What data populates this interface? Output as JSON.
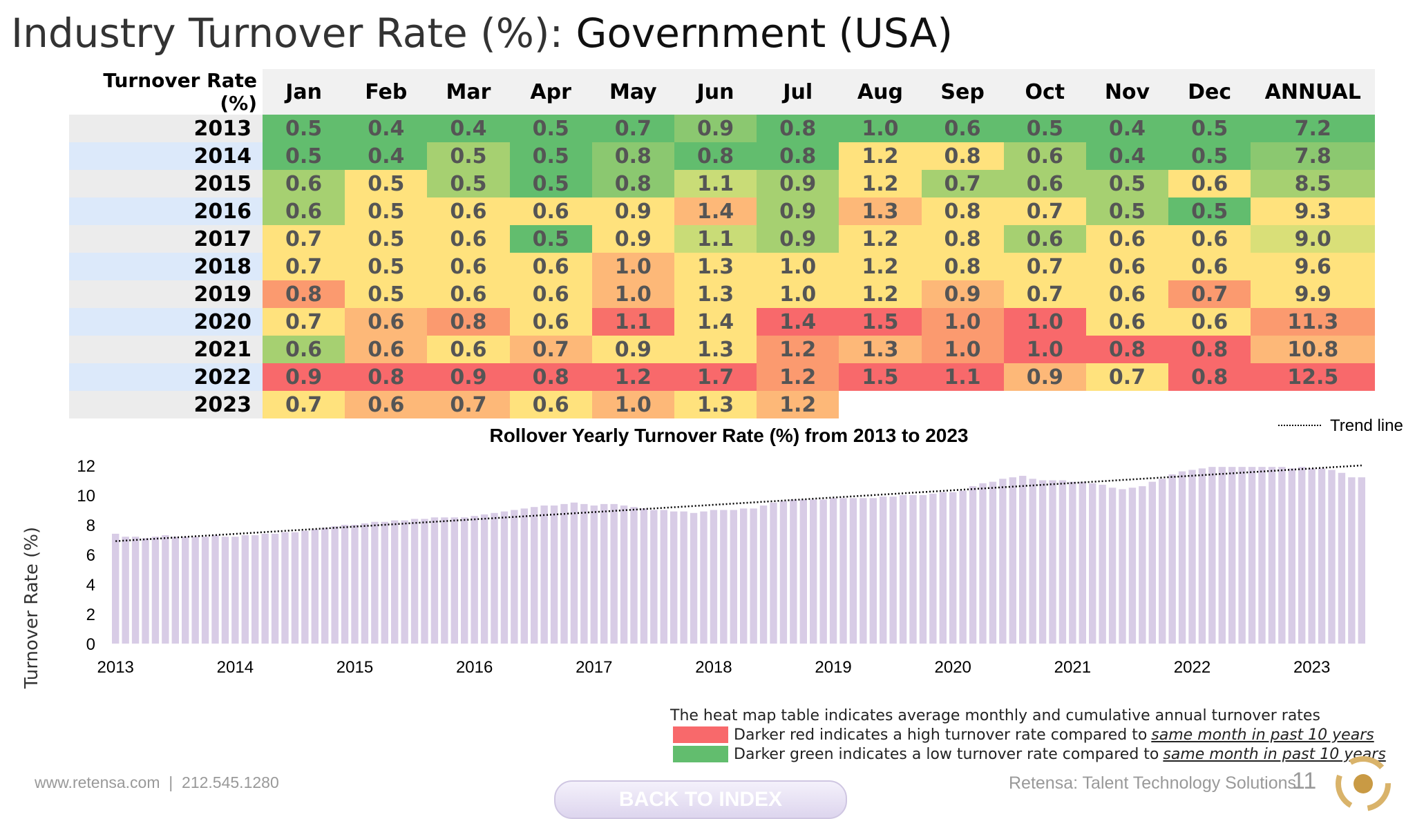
{
  "title": {
    "light": "Industry Turnover Rate (%): ",
    "bold": "Government (USA)"
  },
  "table": {
    "corner": "Turnover Rate (%)",
    "headers": [
      "Jan",
      "Feb",
      "Mar",
      "Apr",
      "May",
      "Jun",
      "Jul",
      "Aug",
      "Sep",
      "Oct",
      "Nov",
      "Dec",
      "ANNUAL"
    ],
    "rows": [
      {
        "year": "2013",
        "values": [
          "0.5",
          "0.4",
          "0.4",
          "0.5",
          "0.7",
          "0.9",
          "0.8",
          "1.0",
          "0.6",
          "0.5",
          "0.4",
          "0.5",
          "7.2"
        ]
      },
      {
        "year": "2014",
        "values": [
          "0.5",
          "0.4",
          "0.5",
          "0.5",
          "0.8",
          "0.8",
          "0.8",
          "1.2",
          "0.8",
          "0.6",
          "0.4",
          "0.5",
          "7.8"
        ]
      },
      {
        "year": "2015",
        "values": [
          "0.6",
          "0.5",
          "0.5",
          "0.5",
          "0.8",
          "1.1",
          "0.9",
          "1.2",
          "0.7",
          "0.6",
          "0.5",
          "0.6",
          "8.5"
        ]
      },
      {
        "year": "2016",
        "values": [
          "0.6",
          "0.5",
          "0.6",
          "0.6",
          "0.9",
          "1.4",
          "0.9",
          "1.3",
          "0.8",
          "0.7",
          "0.5",
          "0.5",
          "9.3"
        ]
      },
      {
        "year": "2017",
        "values": [
          "0.7",
          "0.5",
          "0.6",
          "0.5",
          "0.9",
          "1.1",
          "0.9",
          "1.2",
          "0.8",
          "0.6",
          "0.6",
          "0.6",
          "9.0"
        ]
      },
      {
        "year": "2018",
        "values": [
          "0.7",
          "0.5",
          "0.6",
          "0.6",
          "1.0",
          "1.3",
          "1.0",
          "1.2",
          "0.8",
          "0.7",
          "0.6",
          "0.6",
          "9.6"
        ]
      },
      {
        "year": "2019",
        "values": [
          "0.8",
          "0.5",
          "0.6",
          "0.6",
          "1.0",
          "1.3",
          "1.0",
          "1.2",
          "0.9",
          "0.7",
          "0.6",
          "0.7",
          "9.9"
        ]
      },
      {
        "year": "2020",
        "values": [
          "0.7",
          "0.6",
          "0.8",
          "0.6",
          "1.1",
          "1.4",
          "1.4",
          "1.5",
          "1.0",
          "1.0",
          "0.6",
          "0.6",
          "11.3"
        ]
      },
      {
        "year": "2021",
        "values": [
          "0.6",
          "0.6",
          "0.6",
          "0.7",
          "0.9",
          "1.3",
          "1.2",
          "1.3",
          "1.0",
          "1.0",
          "0.8",
          "0.8",
          "10.8"
        ]
      },
      {
        "year": "2022",
        "values": [
          "0.9",
          "0.8",
          "0.9",
          "0.8",
          "1.2",
          "1.7",
          "1.2",
          "1.5",
          "1.1",
          "0.9",
          "0.7",
          "0.8",
          "12.5"
        ]
      },
      {
        "year": "2023",
        "values": [
          "0.7",
          "0.6",
          "0.7",
          "0.6",
          "1.0",
          "1.3",
          "1.2",
          "",
          "",
          "",
          "",
          "",
          ""
        ]
      }
    ],
    "colors": [
      [
        "#62bd6e",
        "#62bd6e",
        "#62bd6e",
        "#62bd6e",
        "#62bd6e",
        "#8bc870",
        "#62bd6e",
        "#62bd6e",
        "#62bd6e",
        "#62bd6e",
        "#62bd6e",
        "#62bd6e",
        "#62bd6e"
      ],
      [
        "#62bd6e",
        "#62bd6e",
        "#a6d071",
        "#62bd6e",
        "#8bc870",
        "#62bd6e",
        "#62bd6e",
        "#ffe27d",
        "#ffe27d",
        "#a6d071",
        "#62bd6e",
        "#62bd6e",
        "#8bc870"
      ],
      [
        "#a6d071",
        "#ffe27d",
        "#a6d071",
        "#62bd6e",
        "#8bc870",
        "#c9dc77",
        "#a6d071",
        "#ffe27d",
        "#a6d071",
        "#a6d071",
        "#a6d071",
        "#ffe27d",
        "#a6d071"
      ],
      [
        "#a6d071",
        "#ffe27d",
        "#ffe27d",
        "#ffe27d",
        "#ffe27d",
        "#fdb878",
        "#a6d071",
        "#fdb878",
        "#ffe27d",
        "#ffe27d",
        "#a6d071",
        "#62bd6e",
        "#ffe27d"
      ],
      [
        "#ffe27d",
        "#ffe27d",
        "#ffe27d",
        "#62bd6e",
        "#ffe27d",
        "#c9dc77",
        "#a6d071",
        "#ffe27d",
        "#ffe27d",
        "#a6d071",
        "#ffe27d",
        "#ffe27d",
        "#d9df78"
      ],
      [
        "#ffe27d",
        "#ffe27d",
        "#ffe27d",
        "#ffe27d",
        "#fdb878",
        "#ffe27d",
        "#ffe27d",
        "#ffe27d",
        "#ffe27d",
        "#ffe27d",
        "#ffe27d",
        "#ffe27d",
        "#ffe27d"
      ],
      [
        "#fb9a6f",
        "#ffe27d",
        "#ffe27d",
        "#ffe27d",
        "#fdb878",
        "#ffe27d",
        "#ffe27d",
        "#ffe27d",
        "#fdb878",
        "#ffe27d",
        "#ffe27d",
        "#fb9a6f",
        "#ffe27d"
      ],
      [
        "#ffe27d",
        "#fdb878",
        "#fb9a6f",
        "#ffe27d",
        "#f8706a",
        "#ffe27d",
        "#f8696b",
        "#f8696b",
        "#fb9a6f",
        "#f8696b",
        "#ffe27d",
        "#ffe27d",
        "#fb9a6f"
      ],
      [
        "#a6d071",
        "#fdb878",
        "#ffe27d",
        "#fdb878",
        "#ffe27d",
        "#ffe27d",
        "#fb9a6f",
        "#fdb878",
        "#fb9a6f",
        "#f8696b",
        "#f8696b",
        "#f8696b",
        "#fdb878"
      ],
      [
        "#f8696b",
        "#f8696b",
        "#f8696b",
        "#f8696b",
        "#f8696b",
        "#f8696b",
        "#fb9a6f",
        "#f8696b",
        "#f8696b",
        "#fdb878",
        "#ffe27d",
        "#f8696b",
        "#f8696b"
      ],
      [
        "#ffe27d",
        "#fdb878",
        "#fdb878",
        "#ffe27d",
        "#fdb878",
        "#ffe27d",
        "#fdb878",
        "",
        "",
        "",
        "",
        "",
        ""
      ]
    ]
  },
  "chart_data": {
    "type": "bar",
    "title": "Rollover Yearly Turnover Rate (%) from 2013 to 2023",
    "ylabel": "Turnover Rate (%)",
    "xlabel": "",
    "ylim": [
      0,
      12
    ],
    "yticks": [
      "0",
      "2",
      "4",
      "6",
      "8",
      "10",
      "12"
    ],
    "xtick_labels": [
      "2013",
      "2014",
      "2015",
      "2016",
      "2017",
      "2018",
      "2019",
      "2020",
      "2021",
      "2022",
      "2023"
    ],
    "legend": [
      {
        "label": "Trend line",
        "style": "dotted"
      }
    ],
    "bar_color": "#d8cce6",
    "trendline": [
      6.9,
      12.0
    ],
    "values": [
      7.4,
      7.2,
      7.2,
      7.1,
      7.2,
      7.3,
      7.2,
      7.2,
      7.2,
      7.2,
      7.3,
      7.2,
      7.2,
      7.3,
      7.3,
      7.4,
      7.4,
      7.5,
      7.5,
      7.6,
      7.7,
      7.8,
      7.9,
      8.0,
      8.0,
      8.1,
      8.2,
      8.2,
      8.3,
      8.3,
      8.4,
      8.4,
      8.5,
      8.5,
      8.5,
      8.5,
      8.6,
      8.7,
      8.8,
      8.9,
      9.0,
      9.1,
      9.2,
      9.3,
      9.3,
      9.4,
      9.5,
      9.4,
      9.3,
      9.4,
      9.4,
      9.3,
      9.2,
      9.1,
      9.0,
      9.0,
      8.9,
      8.9,
      8.8,
      8.9,
      9.0,
      9.0,
      9.0,
      9.1,
      9.1,
      9.3,
      9.5,
      9.6,
      9.7,
      9.7,
      9.7,
      9.7,
      9.8,
      9.8,
      9.8,
      9.8,
      9.8,
      9.9,
      9.9,
      10.0,
      10.0,
      10.0,
      10.1,
      10.2,
      10.2,
      10.3,
      10.6,
      10.8,
      10.9,
      11.1,
      11.2,
      11.3,
      11.1,
      11.0,
      11.0,
      11.0,
      10.9,
      10.9,
      10.8,
      10.7,
      10.5,
      10.4,
      10.5,
      10.6,
      10.9,
      11.1,
      11.4,
      11.6,
      11.7,
      11.8,
      11.9,
      11.9,
      11.9,
      11.9,
      11.9,
      11.9,
      11.9,
      11.9,
      11.8,
      11.9,
      11.8,
      11.8,
      11.7,
      11.5,
      11.2,
      11.2
    ]
  },
  "legend_notes": {
    "heading": "The heat map table indicates average monthly and cumulative annual turnover rates",
    "red_text": "Darker red indicates a high turnover rate compared to",
    "red_under": "same month in past 10 years",
    "green_text": "Darker green indicates a low turnover rate compared to",
    "green_under": "same month in past 10 years",
    "red_color": "#f8696b",
    "green_color": "#62bd6e"
  },
  "footer": {
    "contact": "www.retensa.com  |  212.545.1280",
    "button": "BACK TO INDEX",
    "brand": "Retensa: Talent Technology Solutions",
    "page": "11"
  }
}
